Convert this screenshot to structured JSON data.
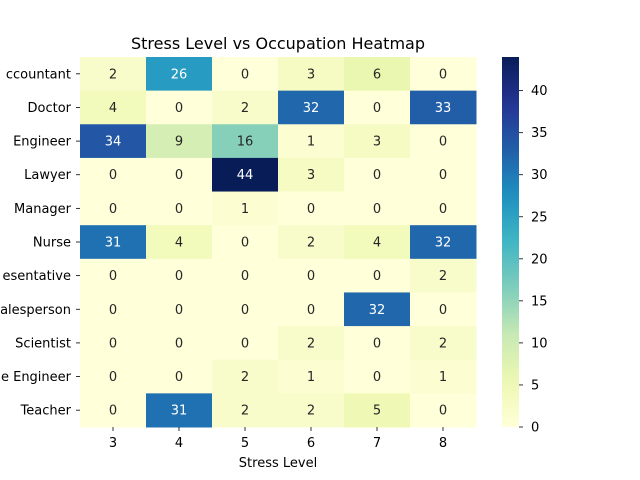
{
  "chart_data": {
    "type": "heatmap",
    "title": "Stress Level vs Occupation Heatmap",
    "xlabel": "Stress Level",
    "ylabel": "",
    "x_categories": [
      "3",
      "4",
      "5",
      "6",
      "7",
      "8"
    ],
    "y_categories": [
      "Accountant",
      "Doctor",
      "Engineer",
      "Lawyer",
      "Manager",
      "Nurse",
      "Sales Representative",
      "Salesperson",
      "Scientist",
      "Software Engineer",
      "Teacher"
    ],
    "y_tick_labels_visible": [
      "ccountant",
      "Doctor",
      "Engineer",
      "Lawyer",
      "Manager",
      "Nurse",
      "esentative",
      "alesperson",
      "Scientist",
      "e Engineer",
      "Teacher"
    ],
    "values": [
      [
        2,
        26,
        0,
        3,
        6,
        0
      ],
      [
        4,
        0,
        2,
        32,
        0,
        33
      ],
      [
        34,
        9,
        16,
        1,
        3,
        0
      ],
      [
        0,
        0,
        44,
        3,
        0,
        0
      ],
      [
        0,
        0,
        1,
        0,
        0,
        0
      ],
      [
        31,
        4,
        0,
        2,
        4,
        32
      ],
      [
        0,
        0,
        0,
        0,
        0,
        2
      ],
      [
        0,
        0,
        0,
        0,
        32,
        0
      ],
      [
        0,
        0,
        0,
        2,
        0,
        2
      ],
      [
        0,
        0,
        2,
        1,
        0,
        1
      ],
      [
        0,
        31,
        2,
        2,
        5,
        0
      ]
    ],
    "colormap": "YlGnBu",
    "vmin": 0,
    "vmax": 44,
    "colorbar_ticks": [
      0,
      5,
      10,
      15,
      20,
      25,
      30,
      35,
      40
    ],
    "annotations": true,
    "grid": false,
    "legend": "colorbar-right"
  }
}
